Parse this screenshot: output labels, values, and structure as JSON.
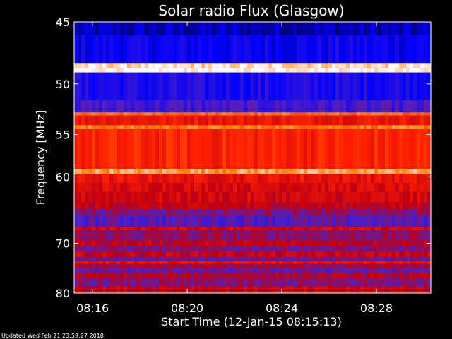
{
  "chart_data": {
    "type": "heatmap",
    "title": "Solar radio Flux (Glasgow)",
    "xlabel": "Start Time (12-Jan-15 08:15:13)",
    "ylabel": "Frequency [MHz]",
    "x_tick_labels": [
      "08:16",
      "08:20",
      "08:24",
      "08:28"
    ],
    "x_tick_minutes": [
      16,
      20,
      24,
      28
    ],
    "x_range_minutes": [
      15.22,
      30.3
    ],
    "y_tick_labels": [
      "45",
      "50",
      "55",
      "60",
      "70",
      "80"
    ],
    "y_tick_values": [
      45,
      50,
      55,
      60,
      70,
      80
    ],
    "y_range_mhz": [
      45,
      80
    ],
    "colormap": [
      "#000044",
      "#0000ff",
      "#5020c0",
      "#c00010",
      "#ff2000",
      "#ff8000",
      "#ffffff"
    ],
    "frequency_bands": [
      {
        "from": 45,
        "to": 46,
        "level": 0.1
      },
      {
        "from": 46,
        "to": 48.2,
        "level": 0.18
      },
      {
        "from": 48.2,
        "to": 48.6,
        "level": 0.95
      },
      {
        "from": 48.6,
        "to": 49.0,
        "level": 1.0
      },
      {
        "from": 49.0,
        "to": 51.5,
        "level": 0.22
      },
      {
        "from": 51.5,
        "to": 52.7,
        "level": 0.3
      },
      {
        "from": 52.7,
        "to": 53.0,
        "level": 0.8
      },
      {
        "from": 53.0,
        "to": 54.0,
        "level": 0.62
      },
      {
        "from": 54.0,
        "to": 54.4,
        "level": 0.82
      },
      {
        "from": 54.4,
        "to": 59.0,
        "level": 0.66
      },
      {
        "from": 59.0,
        "to": 59.6,
        "level": 0.88
      },
      {
        "from": 59.6,
        "to": 60.8,
        "level": 0.6
      },
      {
        "from": 60.8,
        "to": 62.0,
        "level": 0.56
      },
      {
        "from": 62.0,
        "to": 63.5,
        "level": 0.54
      },
      {
        "from": 63.5,
        "to": 64.5,
        "level": 0.5
      },
      {
        "from": 64.5,
        "to": 65.5,
        "level": 0.4
      },
      {
        "from": 65.5,
        "to": 67.2,
        "level": 0.34
      },
      {
        "from": 67.2,
        "to": 67.8,
        "level": 0.55
      },
      {
        "from": 67.8,
        "to": 69.5,
        "level": 0.42
      },
      {
        "from": 69.5,
        "to": 70.5,
        "level": 0.5
      },
      {
        "from": 70.5,
        "to": 71.5,
        "level": 0.4
      },
      {
        "from": 71.5,
        "to": 72.5,
        "level": 0.52
      },
      {
        "from": 72.5,
        "to": 73.3,
        "level": 0.38
      },
      {
        "from": 73.3,
        "to": 73.8,
        "level": 0.6
      },
      {
        "from": 73.8,
        "to": 74.7,
        "level": 0.45
      },
      {
        "from": 74.7,
        "to": 75.5,
        "level": 0.35
      },
      {
        "from": 75.5,
        "to": 76.8,
        "level": 0.48
      },
      {
        "from": 76.8,
        "to": 78.5,
        "level": 0.4
      },
      {
        "from": 78.5,
        "to": 80,
        "level": 0.52
      }
    ]
  },
  "footer": {
    "updated_text": "Updated Wed Feb 21 23:59:27 2018"
  }
}
